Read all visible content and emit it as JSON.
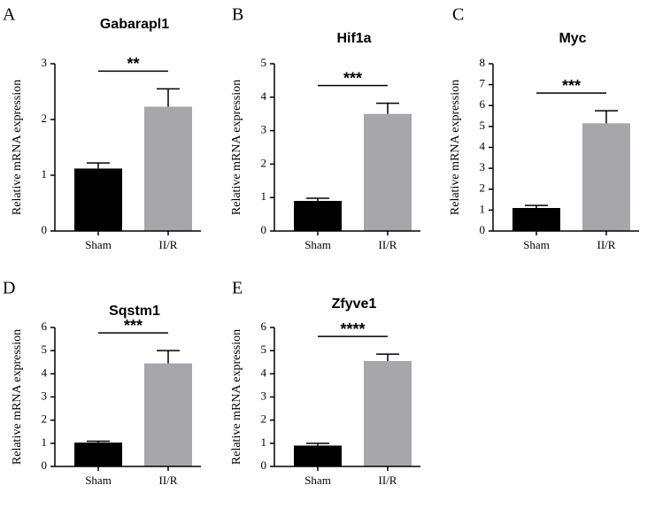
{
  "chart_data": [
    {
      "type": "bar",
      "panel": "A",
      "title": "Gabarapl1",
      "ylabel": "Relative mRNA expression",
      "categories": [
        "Sham",
        "II/R"
      ],
      "values": [
        1.12,
        2.23
      ],
      "errors": [
        0.1,
        0.32
      ],
      "colors": [
        "#000000",
        "#a6a6ab"
      ],
      "ylim": [
        0,
        3
      ],
      "yticks": [
        0,
        1,
        2,
        3
      ],
      "significance": "**"
    },
    {
      "type": "bar",
      "panel": "B",
      "title": "Hif1a",
      "ylabel": "Relative mRNA expression",
      "categories": [
        "Sham",
        "II/R"
      ],
      "values": [
        0.9,
        3.5
      ],
      "errors": [
        0.08,
        0.32
      ],
      "colors": [
        "#000000",
        "#a6a6ab"
      ],
      "ylim": [
        0,
        5
      ],
      "yticks": [
        0,
        1,
        2,
        3,
        4,
        5
      ],
      "significance": "***"
    },
    {
      "type": "bar",
      "panel": "C",
      "title": "Myc",
      "ylabel": "Relative mRNA expression",
      "categories": [
        "Sham",
        "II/R"
      ],
      "values": [
        1.1,
        5.15
      ],
      "errors": [
        0.12,
        0.6
      ],
      "colors": [
        "#000000",
        "#a6a6ab"
      ],
      "ylim": [
        0,
        8
      ],
      "yticks": [
        0,
        1,
        2,
        3,
        4,
        5,
        6,
        7,
        8
      ],
      "significance": "***"
    },
    {
      "type": "bar",
      "panel": "D",
      "title": "Sqstm1",
      "ylabel": "Relative mRNA expression",
      "categories": [
        "Sham",
        "II/R"
      ],
      "values": [
        1.03,
        4.45
      ],
      "errors": [
        0.06,
        0.55
      ],
      "colors": [
        "#000000",
        "#a6a6ab"
      ],
      "ylim": [
        0,
        6
      ],
      "yticks": [
        0,
        1,
        2,
        3,
        4,
        5,
        6
      ],
      "significance": "***"
    },
    {
      "type": "bar",
      "panel": "E",
      "title": "Zfyve1",
      "ylabel": "Relative mRNA expression",
      "categories": [
        "Sham",
        "II/R"
      ],
      "values": [
        0.9,
        4.55
      ],
      "errors": [
        0.1,
        0.3
      ],
      "colors": [
        "#000000",
        "#a6a6ab"
      ],
      "ylim": [
        0,
        6
      ],
      "yticks": [
        0,
        1,
        2,
        3,
        4,
        5,
        6
      ],
      "significance": "****"
    }
  ]
}
